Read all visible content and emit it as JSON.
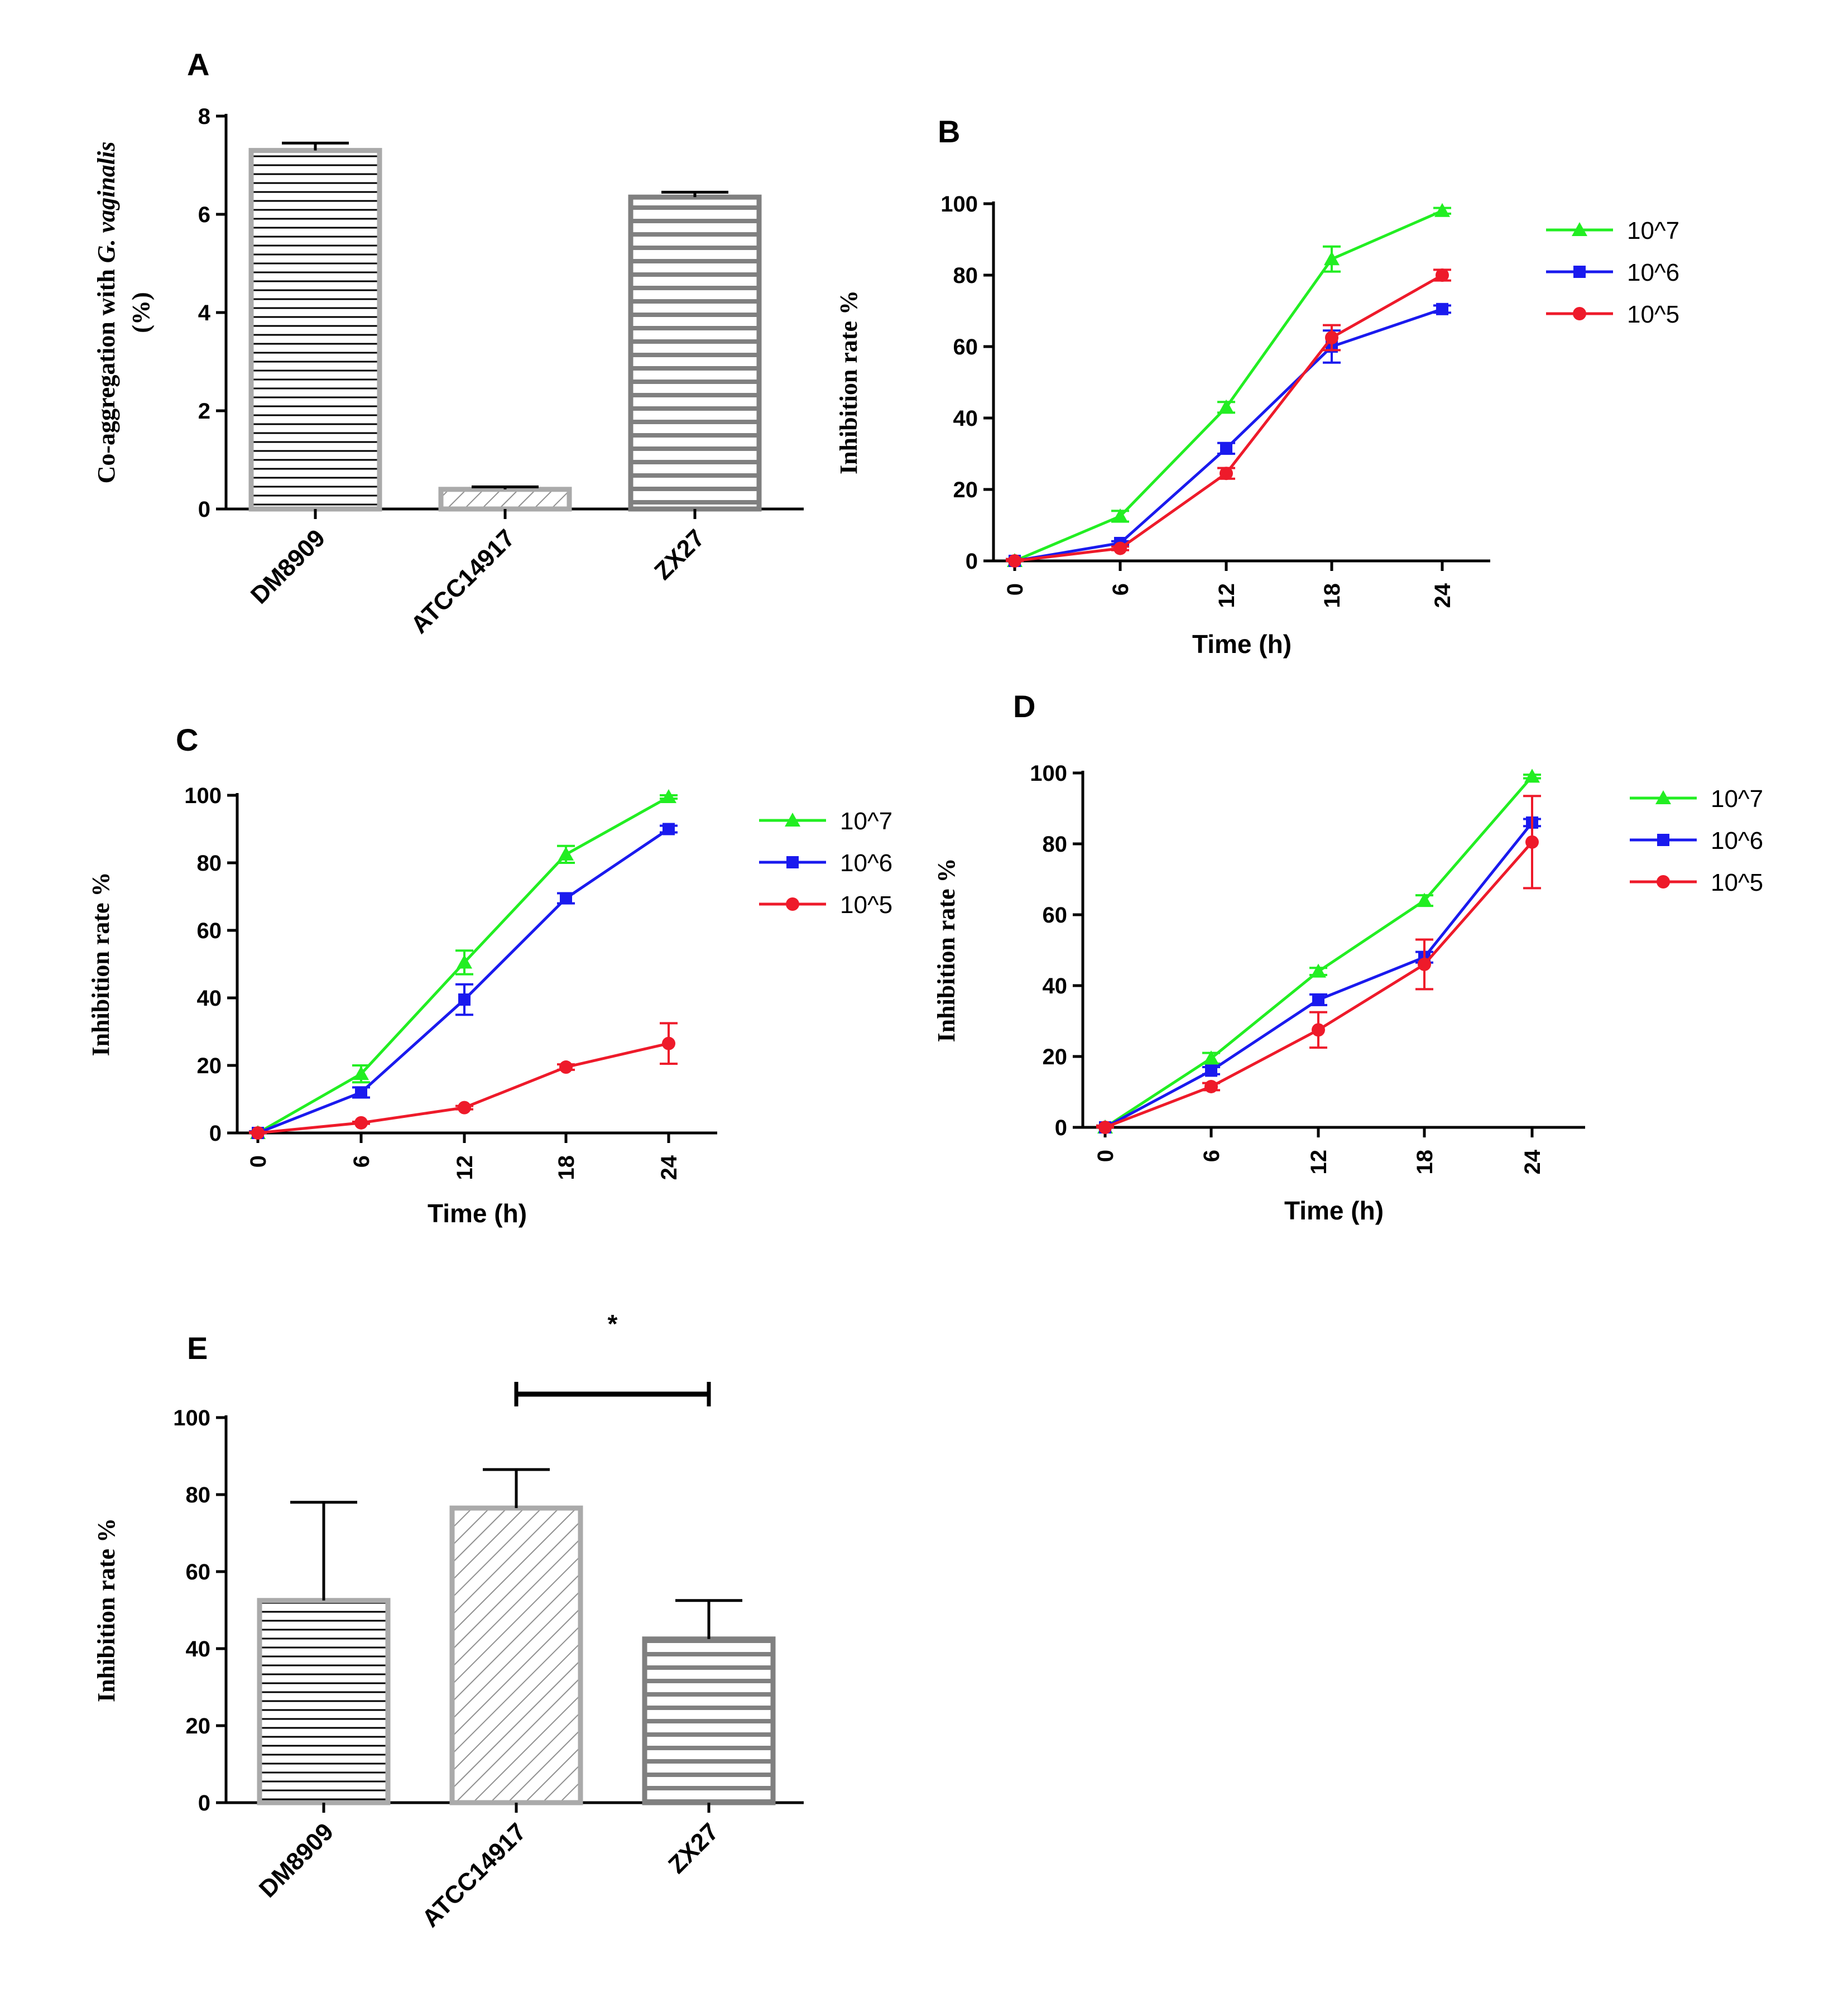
{
  "figure": {
    "series_colors": {
      "10^7": "#22ee22",
      "10^6": "#1a1aee",
      "10^5": "#ee1a2a"
    },
    "bar_edge_colors": {
      "DM8909": "#aaaaaa",
      "ATCC14917": "#aaaaaa",
      "ZX27": "#808080"
    }
  },
  "chart_data": [
    {
      "panel": "A",
      "type": "bar",
      "categories": [
        "DM8909",
        "ATCC14917",
        "ZX27"
      ],
      "values": [
        7.3,
        0.4,
        6.35
      ],
      "errors": [
        0.15,
        0.05,
        0.1
      ],
      "patterns": [
        "horizontal",
        "diagonal",
        "horizontal-thick"
      ],
      "ylabel_prefix": "Co-aggregation with ",
      "ylabel_italic": "G. vaginalis",
      "ylabel_line2": "(%)",
      "ylim": [
        0,
        8
      ],
      "yticks": [
        "0",
        "2",
        "4",
        "6",
        "8"
      ]
    },
    {
      "panel": "B",
      "type": "line",
      "x": [
        0,
        6,
        12,
        18,
        24
      ],
      "xticks": [
        "0",
        "6",
        "12",
        "18",
        "24"
      ],
      "series": [
        {
          "name": "10^7",
          "values": [
            0,
            12.5,
            43,
            84.5,
            98
          ],
          "errors": [
            0.5,
            1.5,
            1.5,
            3.5,
            0.8
          ]
        },
        {
          "name": "10^6",
          "values": [
            0,
            5,
            31.5,
            60,
            70.5
          ],
          "errors": [
            0.5,
            0.5,
            1.5,
            4.5,
            1.0
          ]
        },
        {
          "name": "10^5",
          "values": [
            0,
            3.5,
            24.5,
            62.5,
            80
          ],
          "errors": [
            0.5,
            0.5,
            1.5,
            3.5,
            1.5
          ]
        }
      ],
      "xlabel": "Time (h)",
      "ylabel": "Inhibition rate %",
      "ylim": [
        0,
        100
      ],
      "yticks": [
        "0",
        "20",
        "40",
        "60",
        "80",
        "100"
      ],
      "legend": "right"
    },
    {
      "panel": "C",
      "type": "line",
      "x": [
        0,
        6,
        12,
        18,
        24
      ],
      "xticks": [
        "0",
        "6",
        "12",
        "18",
        "24"
      ],
      "series": [
        {
          "name": "10^7",
          "values": [
            0,
            17.5,
            50.5,
            82.5,
            99.5
          ],
          "errors": [
            0.5,
            2.5,
            3.5,
            2.5,
            0.5
          ]
        },
        {
          "name": "10^6",
          "values": [
            0,
            12,
            39.5,
            69.5,
            90
          ],
          "errors": [
            0.5,
            1.5,
            4.5,
            1.5,
            1.0
          ]
        },
        {
          "name": "10^5",
          "values": [
            0,
            3,
            7.5,
            19.5,
            26.5
          ],
          "errors": [
            0.3,
            0.3,
            0.5,
            0.8,
            6.0
          ]
        }
      ],
      "xlabel": "Time (h)",
      "ylabel": "Inhibition rate %",
      "ylim": [
        0,
        100
      ],
      "yticks": [
        "0",
        "20",
        "40",
        "60",
        "80",
        "100"
      ],
      "legend": "right"
    },
    {
      "panel": "D",
      "type": "line",
      "x": [
        0,
        6,
        12,
        18,
        24
      ],
      "xticks": [
        "0",
        "6",
        "12",
        "18",
        "24"
      ],
      "series": [
        {
          "name": "10^7",
          "values": [
            0,
            19.5,
            44,
            64,
            99
          ],
          "errors": [
            0.5,
            1.5,
            1.0,
            1.5,
            0.5
          ]
        },
        {
          "name": "10^6",
          "values": [
            0,
            16,
            36,
            48,
            86
          ],
          "errors": [
            0.5,
            1.0,
            1.5,
            1.5,
            1.0
          ]
        },
        {
          "name": "10^5",
          "values": [
            0,
            11.5,
            27.5,
            46,
            80.5
          ],
          "errors": [
            0.5,
            1.0,
            5.0,
            7.0,
            13.0
          ]
        }
      ],
      "xlabel": "Time (h)",
      "ylabel": "Inhibition rate %",
      "ylim": [
        0,
        100
      ],
      "yticks": [
        "0",
        "20",
        "40",
        "60",
        "80",
        "100"
      ],
      "legend": "right"
    },
    {
      "panel": "E",
      "type": "bar",
      "categories": [
        "DM8909",
        "ATCC14917",
        "ZX27"
      ],
      "values": [
        52.5,
        76.5,
        42.5
      ],
      "errors": [
        25.5,
        10,
        10
      ],
      "patterns": [
        "horizontal",
        "diagonal",
        "horizontal-thick"
      ],
      "ylabel": "Inhibition rate %",
      "ylim": [
        0,
        100
      ],
      "yticks": [
        "0",
        "20",
        "40",
        "60",
        "80",
        "100"
      ],
      "significance": {
        "from": "ATCC14917",
        "to": "ZX27",
        "label": "*"
      }
    }
  ]
}
